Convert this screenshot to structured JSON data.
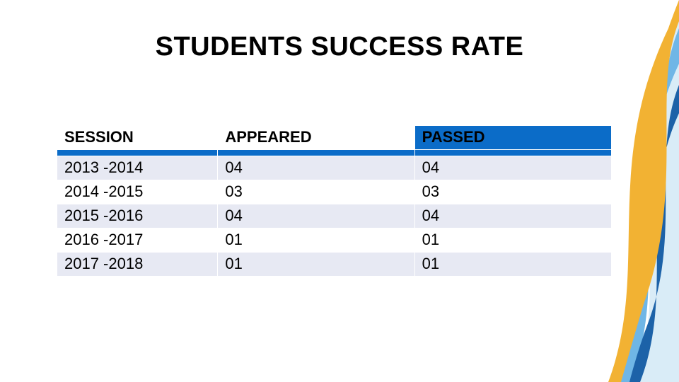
{
  "title": "STUDENTS SUCCESS RATE",
  "title_fontsize": 38,
  "title_color": "#000000",
  "background_color": "#ffffff",
  "table": {
    "type": "table",
    "columns": [
      "SESSION",
      "APPEARED",
      "PASSED"
    ],
    "column_widths_pct": [
      29,
      35.5,
      35.5
    ],
    "header_fontsize": 22,
    "cell_fontsize": 22,
    "header_bg": {
      "session": "#ffffff",
      "appeared": "#ffffff",
      "passed": "#0b6cc8"
    },
    "header_text_color": "#000000",
    "accent_strip_color": "#0b6cc8",
    "accent_strip_height": 8,
    "row_colors": [
      "#e7e9f3",
      "#ffffff"
    ],
    "border_color": "#ffffff",
    "rows": [
      [
        "2013 -2014",
        "04",
        "04"
      ],
      [
        "2014 -2015",
        "03",
        "03"
      ],
      [
        "2015 -2016",
        "04",
        "04"
      ],
      [
        "2016 -2017",
        "01",
        "01"
      ],
      [
        "2017 -2018",
        "01",
        "01"
      ]
    ]
  },
  "decor": {
    "wave_colors": [
      "#f2b233",
      "#1c62a8",
      "#6fb6e6",
      "#d9ecf7"
    ]
  }
}
